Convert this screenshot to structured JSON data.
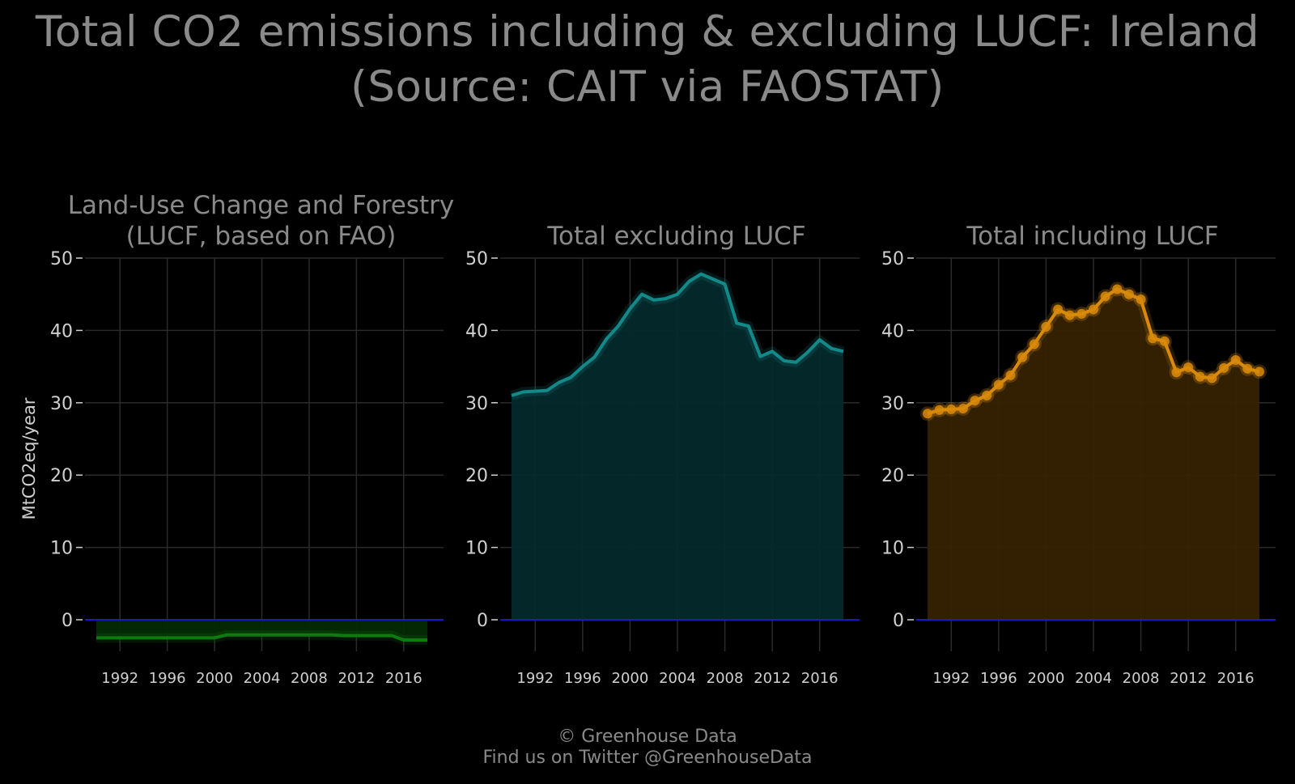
{
  "title_line1": "Total CO2 emissions including & excluding LUCF: Ireland",
  "title_line2": "(Source: CAIT via FAOSTAT)",
  "footer_line1": "© Greenhouse Data",
  "footer_line2": "Find us on Twitter @GreenhouseData",
  "chart_data": {
    "type": "area",
    "ylabel": "MtCO2eq/year",
    "ylim": [
      -5,
      50
    ],
    "xlim": [
      1990,
      2018
    ],
    "yticks": [
      0,
      10,
      20,
      30,
      40,
      50
    ],
    "xticks": [
      1992,
      1996,
      2000,
      2004,
      2008,
      2012,
      2016
    ],
    "grid": true,
    "x": [
      1990,
      1991,
      1992,
      1993,
      1994,
      1995,
      1996,
      1997,
      1998,
      1999,
      2000,
      2001,
      2002,
      2003,
      2004,
      2005,
      2006,
      2007,
      2008,
      2009,
      2010,
      2011,
      2012,
      2013,
      2014,
      2015,
      2016,
      2017,
      2018
    ],
    "panels": [
      {
        "title_line1": "Land-Use Change and Forestry",
        "title_line2": "(LUCF, based on FAO)",
        "color": "#0f7a0f",
        "fill": "#032a03",
        "markers": false,
        "values": [
          -2.5,
          -2.5,
          -2.5,
          -2.5,
          -2.5,
          -2.5,
          -2.5,
          -2.5,
          -2.5,
          -2.5,
          -2.5,
          -2.1,
          -2.1,
          -2.1,
          -2.1,
          -2.1,
          -2.1,
          -2.1,
          -2.1,
          -2.1,
          -2.1,
          -2.2,
          -2.2,
          -2.2,
          -2.2,
          -2.2,
          -2.8,
          -2.8,
          -2.8
        ]
      },
      {
        "title_line1": "Total excluding LUCF",
        "title_line2": "",
        "color": "#138a8a",
        "fill": "#042a2c",
        "markers": false,
        "values": [
          31.0,
          31.5,
          31.6,
          31.7,
          32.8,
          33.5,
          35.0,
          36.3,
          38.8,
          40.6,
          43.0,
          45.0,
          44.2,
          44.4,
          45.0,
          46.8,
          47.8,
          47.1,
          46.4,
          41.0,
          40.6,
          36.4,
          37.1,
          35.8,
          35.6,
          37.0,
          38.7,
          37.5,
          37.1
        ]
      },
      {
        "title_line1": "Total including LUCF",
        "title_line2": "",
        "color": "#d98a0a",
        "fill": "#362203",
        "markers": true,
        "values": [
          28.5,
          29.0,
          29.1,
          29.2,
          30.3,
          31.0,
          32.5,
          33.8,
          36.3,
          38.1,
          40.5,
          42.9,
          42.1,
          42.3,
          42.9,
          44.7,
          45.7,
          45.0,
          44.3,
          38.9,
          38.5,
          34.2,
          34.9,
          33.6,
          33.4,
          34.8,
          35.9,
          34.7,
          34.3
        ]
      }
    ]
  }
}
